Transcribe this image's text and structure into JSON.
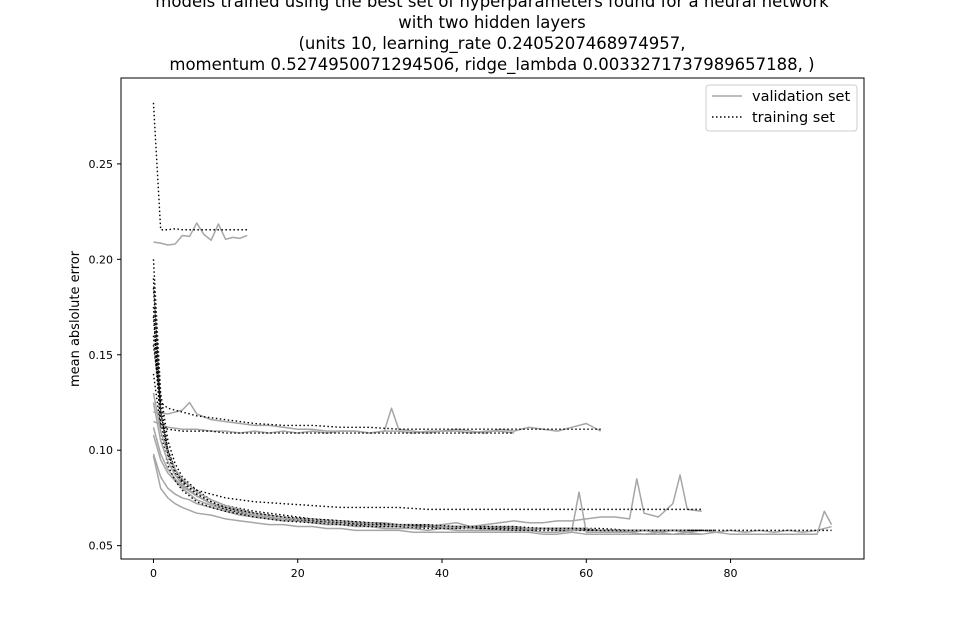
{
  "chart_data": {
    "type": "line",
    "title": [
      "models trained using the best set of hyperparameters found for a neural network",
      "with two hidden layers",
      "(units 10, learning_rate 0.2405207468974957,",
      "momentum 0.5274950071294506, ridge_lambda 0.0033271737989657188, )"
    ],
    "xlabel": "",
    "ylabel": "mean abslolute error",
    "xlim": [
      -4.5,
      98.5
    ],
    "ylim": [
      0.043,
      0.295
    ],
    "xticks": [
      0,
      20,
      40,
      60,
      80
    ],
    "yticks": [
      0.05,
      0.1,
      0.15,
      0.2,
      0.25
    ],
    "ytick_labels": [
      "0.05",
      "0.10",
      "0.15",
      "0.20",
      "0.25"
    ],
    "grid": false,
    "legend": {
      "location": "top-right",
      "entries": [
        {
          "label": "validation set",
          "style": "solid",
          "color": "#a6a6a6"
        },
        {
          "label": "training set",
          "style": "dotted",
          "color": "#000000"
        }
      ]
    },
    "series": [
      {
        "group": "A",
        "kind": "validation",
        "x": [
          0,
          1,
          2,
          3,
          4,
          5,
          6,
          7,
          8,
          9,
          10,
          11,
          12,
          13
        ],
        "y": [
          0.209,
          0.2085,
          0.2075,
          0.208,
          0.2125,
          0.212,
          0.219,
          0.213,
          0.21,
          0.2185,
          0.2105,
          0.2115,
          0.211,
          0.2125
        ]
      },
      {
        "group": "A",
        "kind": "training",
        "x": [
          0,
          1,
          2,
          3,
          4,
          5,
          6,
          7,
          8,
          9,
          10,
          11,
          12,
          13
        ],
        "y": [
          0.282,
          0.2155,
          0.2155,
          0.216,
          0.2155,
          0.2155,
          0.2155,
          0.2155,
          0.2155,
          0.2155,
          0.2155,
          0.2155,
          0.2155,
          0.2155
        ]
      },
      {
        "group": "B",
        "kind": "validation",
        "x": [
          0,
          2,
          4,
          5,
          6,
          8,
          10,
          12,
          14,
          16,
          18,
          20,
          22,
          24,
          26,
          28,
          30,
          32,
          33,
          34,
          36,
          38,
          40,
          42,
          44,
          46,
          48,
          50,
          52,
          54,
          56,
          58,
          60,
          62
        ],
        "y": [
          0.12,
          0.119,
          0.121,
          0.125,
          0.119,
          0.116,
          0.115,
          0.114,
          0.113,
          0.113,
          0.112,
          0.111,
          0.111,
          0.11,
          0.11,
          0.11,
          0.109,
          0.11,
          0.122,
          0.111,
          0.11,
          0.109,
          0.11,
          0.111,
          0.11,
          0.109,
          0.111,
          0.11,
          0.112,
          0.111,
          0.11,
          0.112,
          0.114,
          0.11
        ]
      },
      {
        "group": "B",
        "kind": "training",
        "x": [
          0,
          1,
          2,
          4,
          6,
          8,
          10,
          14,
          18,
          22,
          26,
          30,
          34,
          38,
          42,
          46,
          50,
          54,
          58,
          62
        ],
        "y": [
          0.155,
          0.125,
          0.122,
          0.12,
          0.118,
          0.117,
          0.116,
          0.114,
          0.113,
          0.113,
          0.112,
          0.112,
          0.111,
          0.111,
          0.111,
          0.111,
          0.111,
          0.111,
          0.111,
          0.111
        ]
      },
      {
        "group": "C",
        "kind": "validation",
        "x": [
          0,
          2,
          4,
          6,
          8,
          10,
          12,
          14,
          16,
          18,
          20,
          22,
          24,
          26,
          28,
          30,
          32,
          34,
          36,
          38,
          40,
          42,
          44,
          46,
          48,
          50
        ],
        "y": [
          0.115,
          0.112,
          0.111,
          0.111,
          0.11,
          0.11,
          0.109,
          0.11,
          0.109,
          0.11,
          0.109,
          0.11,
          0.109,
          0.11,
          0.11,
          0.109,
          0.11,
          0.11,
          0.109,
          0.11,
          0.11,
          0.11,
          0.109,
          0.11,
          0.11,
          0.109
        ]
      },
      {
        "group": "C",
        "kind": "training",
        "x": [
          0,
          1,
          2,
          4,
          6,
          8,
          10,
          14,
          18,
          22,
          26,
          30,
          34,
          38,
          42,
          46,
          50
        ],
        "y": [
          0.14,
          0.112,
          0.111,
          0.11,
          0.11,
          0.11,
          0.109,
          0.109,
          0.109,
          0.109,
          0.109,
          0.109,
          0.109,
          0.109,
          0.109,
          0.109,
          0.109
        ]
      },
      {
        "group": "D",
        "kind": "validation",
        "x": [
          0,
          1,
          2,
          3,
          4,
          5,
          6,
          8,
          10,
          12,
          14,
          16,
          18,
          20,
          22,
          24,
          26,
          28,
          30,
          32,
          34,
          36,
          38,
          40,
          42,
          44,
          46,
          48,
          50,
          52,
          54,
          56,
          58,
          60,
          62,
          64,
          66,
          67,
          68,
          70,
          72,
          73,
          74,
          76
        ],
        "y": [
          0.098,
          0.086,
          0.08,
          0.077,
          0.075,
          0.074,
          0.072,
          0.07,
          0.068,
          0.066,
          0.065,
          0.064,
          0.064,
          0.063,
          0.063,
          0.062,
          0.062,
          0.062,
          0.061,
          0.061,
          0.061,
          0.061,
          0.06,
          0.061,
          0.062,
          0.06,
          0.061,
          0.062,
          0.063,
          0.062,
          0.062,
          0.063,
          0.063,
          0.064,
          0.065,
          0.065,
          0.064,
          0.085,
          0.067,
          0.065,
          0.072,
          0.087,
          0.069,
          0.068
        ]
      },
      {
        "group": "D",
        "kind": "training",
        "x": [
          0,
          1,
          2,
          3,
          4,
          6,
          8,
          10,
          14,
          18,
          22,
          26,
          30,
          34,
          38,
          42,
          46,
          50,
          54,
          58,
          62,
          66,
          70,
          74,
          76
        ],
        "y": [
          0.19,
          0.12,
          0.1,
          0.09,
          0.084,
          0.079,
          0.077,
          0.075,
          0.073,
          0.072,
          0.071,
          0.07,
          0.07,
          0.07,
          0.069,
          0.069,
          0.069,
          0.069,
          0.069,
          0.069,
          0.069,
          0.069,
          0.069,
          0.069,
          0.069
        ]
      },
      {
        "group": "E",
        "kind": "validation",
        "x": [
          0,
          1,
          2,
          3,
          4,
          6,
          8,
          10,
          12,
          14,
          16,
          18,
          20,
          22,
          24,
          26,
          28,
          30,
          32,
          34,
          36,
          38,
          40,
          42,
          44,
          46,
          48,
          50,
          52,
          54,
          56,
          58,
          60,
          62,
          64,
          66,
          68,
          70,
          72,
          74,
          76,
          78,
          80,
          82,
          84,
          86,
          88,
          90,
          92,
          94
        ],
        "y": [
          0.112,
          0.098,
          0.09,
          0.085,
          0.081,
          0.076,
          0.072,
          0.07,
          0.068,
          0.066,
          0.065,
          0.064,
          0.063,
          0.062,
          0.062,
          0.061,
          0.061,
          0.06,
          0.06,
          0.06,
          0.059,
          0.06,
          0.059,
          0.059,
          0.06,
          0.058,
          0.059,
          0.059,
          0.058,
          0.059,
          0.058,
          0.058,
          0.058,
          0.058,
          0.058,
          0.057,
          0.058,
          0.057,
          0.058,
          0.057,
          0.058,
          0.057,
          0.058,
          0.057,
          0.058,
          0.057,
          0.058,
          0.057,
          0.058,
          0.06
        ]
      },
      {
        "group": "E",
        "kind": "training",
        "x": [
          0,
          1,
          2,
          3,
          4,
          6,
          8,
          10,
          14,
          18,
          22,
          26,
          30,
          34,
          38,
          42,
          46,
          50,
          54,
          58,
          62,
          66,
          70,
          74,
          78,
          82,
          86,
          90,
          94
        ],
        "y": [
          0.2,
          0.13,
          0.105,
          0.093,
          0.086,
          0.079,
          0.074,
          0.071,
          0.068,
          0.066,
          0.064,
          0.063,
          0.062,
          0.061,
          0.06,
          0.06,
          0.06,
          0.059,
          0.059,
          0.059,
          0.059,
          0.058,
          0.058,
          0.058,
          0.058,
          0.058,
          0.058,
          0.058,
          0.058
        ]
      },
      {
        "group": "F",
        "kind": "validation",
        "x": [
          0,
          1,
          2,
          3,
          4,
          6,
          8,
          10,
          12,
          14,
          16,
          18,
          20,
          22,
          24,
          26,
          28,
          30,
          32,
          34,
          36,
          38,
          40,
          42,
          44,
          46,
          48,
          50,
          52,
          54,
          56,
          58,
          59,
          60,
          62,
          64,
          66,
          68,
          70,
          72,
          74,
          76,
          78,
          80,
          82,
          84,
          86,
          88,
          90,
          92,
          93,
          94
        ],
        "y": [
          0.108,
          0.095,
          0.088,
          0.084,
          0.08,
          0.074,
          0.071,
          0.069,
          0.067,
          0.065,
          0.064,
          0.063,
          0.063,
          0.062,
          0.061,
          0.061,
          0.06,
          0.06,
          0.059,
          0.059,
          0.059,
          0.058,
          0.059,
          0.058,
          0.058,
          0.058,
          0.058,
          0.058,
          0.058,
          0.057,
          0.057,
          0.058,
          0.078,
          0.057,
          0.057,
          0.057,
          0.057,
          0.056,
          0.057,
          0.056,
          0.057,
          0.056,
          0.057,
          0.056,
          0.056,
          0.056,
          0.056,
          0.056,
          0.056,
          0.056,
          0.068,
          0.061
        ]
      },
      {
        "group": "F",
        "kind": "training",
        "x": [
          0,
          1,
          2,
          3,
          4,
          6,
          8,
          10,
          14,
          18,
          22,
          26,
          30,
          34,
          38,
          42,
          46,
          50,
          54,
          58,
          62,
          66,
          70,
          74,
          78
        ],
        "y": [
          0.16,
          0.115,
          0.097,
          0.088,
          0.082,
          0.076,
          0.072,
          0.069,
          0.066,
          0.064,
          0.063,
          0.062,
          0.061,
          0.061,
          0.06,
          0.06,
          0.059,
          0.059,
          0.059,
          0.059,
          0.058,
          0.058,
          0.058,
          0.058,
          0.058
        ]
      },
      {
        "group": "G",
        "kind": "validation",
        "x": [
          0,
          1,
          2,
          3,
          4,
          6,
          8,
          10,
          12,
          14,
          16,
          18,
          20,
          22,
          24,
          26,
          28,
          30,
          32,
          34,
          36,
          38,
          40,
          42,
          44,
          46,
          48,
          50,
          52,
          54,
          56,
          58,
          60,
          62,
          64,
          66,
          68,
          70,
          72,
          74,
          76
        ],
        "y": [
          0.097,
          0.08,
          0.075,
          0.072,
          0.07,
          0.067,
          0.066,
          0.064,
          0.063,
          0.062,
          0.061,
          0.061,
          0.06,
          0.06,
          0.059,
          0.059,
          0.058,
          0.058,
          0.058,
          0.058,
          0.057,
          0.057,
          0.057,
          0.057,
          0.057,
          0.057,
          0.057,
          0.057,
          0.057,
          0.056,
          0.056,
          0.057,
          0.056,
          0.056,
          0.056,
          0.056,
          0.056,
          0.056,
          0.056,
          0.056,
          0.056
        ]
      },
      {
        "group": "G",
        "kind": "training",
        "x": [
          0,
          1,
          2,
          3,
          4,
          6,
          8,
          10,
          14,
          18,
          22,
          26,
          30,
          34,
          38,
          42,
          46,
          50,
          54,
          58,
          62,
          66,
          70,
          74,
          76
        ],
        "y": [
          0.175,
          0.11,
          0.092,
          0.084,
          0.079,
          0.073,
          0.07,
          0.068,
          0.065,
          0.063,
          0.062,
          0.061,
          0.06,
          0.06,
          0.059,
          0.059,
          0.059,
          0.058,
          0.058,
          0.058,
          0.058,
          0.058,
          0.058,
          0.058,
          0.058
        ]
      },
      {
        "group": "H",
        "kind": "validation",
        "x": [
          0,
          1,
          2,
          3,
          4,
          6,
          8,
          10,
          12,
          14,
          16,
          18,
          20,
          22,
          24,
          26,
          28,
          30,
          32,
          34,
          36,
          38,
          40,
          42,
          44,
          46,
          48,
          50,
          52,
          54,
          56,
          58,
          60,
          62,
          64,
          66,
          68,
          70,
          72,
          74
        ],
        "y": [
          0.125,
          0.105,
          0.094,
          0.087,
          0.082,
          0.076,
          0.072,
          0.07,
          0.068,
          0.066,
          0.065,
          0.064,
          0.064,
          0.063,
          0.062,
          0.062,
          0.062,
          0.061,
          0.061,
          0.061,
          0.06,
          0.06,
          0.06,
          0.06,
          0.059,
          0.06,
          0.059,
          0.059,
          0.059,
          0.059,
          0.059,
          0.058,
          0.059,
          0.058,
          0.058,
          0.058,
          0.058,
          0.058,
          0.058,
          0.058
        ]
      },
      {
        "group": "H",
        "kind": "training",
        "x": [
          0,
          1,
          2,
          3,
          4,
          6,
          8,
          10,
          14,
          18,
          22,
          26,
          30,
          34,
          38,
          42,
          46,
          50,
          54,
          58,
          62,
          66,
          70,
          74
        ],
        "y": [
          0.185,
          0.125,
          0.1,
          0.09,
          0.084,
          0.077,
          0.073,
          0.07,
          0.067,
          0.065,
          0.063,
          0.062,
          0.061,
          0.061,
          0.06,
          0.06,
          0.059,
          0.059,
          0.059,
          0.059,
          0.058,
          0.058,
          0.058,
          0.058
        ]
      },
      {
        "group": "I",
        "kind": "validation",
        "x": [
          0,
          1,
          2,
          3,
          4,
          6,
          8,
          10,
          12,
          14,
          16,
          18,
          20,
          22,
          24,
          26,
          28,
          30,
          32,
          34,
          36,
          38,
          40,
          42,
          44,
          46,
          48,
          50,
          52,
          54,
          56,
          58,
          60
        ],
        "y": [
          0.13,
          0.11,
          0.098,
          0.09,
          0.085,
          0.078,
          0.074,
          0.071,
          0.069,
          0.067,
          0.066,
          0.065,
          0.064,
          0.064,
          0.063,
          0.063,
          0.062,
          0.062,
          0.062,
          0.061,
          0.061,
          0.061,
          0.06,
          0.06,
          0.06,
          0.06,
          0.06,
          0.06,
          0.059,
          0.059,
          0.059,
          0.059,
          0.059
        ]
      },
      {
        "group": "I",
        "kind": "training",
        "x": [
          0,
          1,
          2,
          3,
          4,
          6,
          8,
          10,
          14,
          18,
          22,
          26,
          30,
          34,
          38,
          42,
          46,
          50,
          54,
          58,
          60
        ],
        "y": [
          0.17,
          0.12,
          0.098,
          0.089,
          0.083,
          0.077,
          0.073,
          0.07,
          0.067,
          0.065,
          0.064,
          0.063,
          0.062,
          0.061,
          0.061,
          0.06,
          0.06,
          0.06,
          0.059,
          0.059,
          0.059
        ]
      }
    ]
  }
}
